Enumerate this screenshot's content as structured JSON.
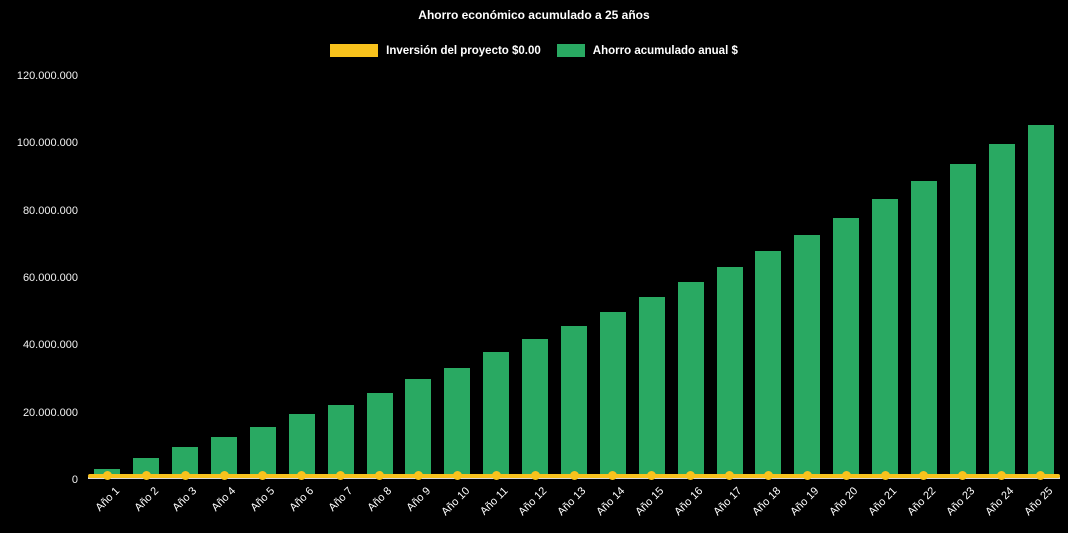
{
  "chart_data": {
    "type": "bar",
    "title": "Ahorro económico acumulado a 25 años",
    "background": "#000000",
    "grid": false,
    "legend_position": "top",
    "categories": [
      "Año 1",
      "Año 2",
      "Año 3",
      "Año 4",
      "Año 5",
      "Año 6",
      "Año 7",
      "Año 8",
      "Año 9",
      "Año 10",
      "Año 11",
      "Año 12",
      "Año 13",
      "Año 14",
      "Año 15",
      "Año 16",
      "Año 17",
      "Año 18",
      "Año 19",
      "Año 20",
      "Año 21",
      "Año 22",
      "Año 23",
      "Año 24",
      "Año 25"
    ],
    "series": [
      {
        "name": "Inversión del proyecto $0.00",
        "type": "line",
        "color": "#F8C21C",
        "values": [
          0,
          0,
          0,
          0,
          0,
          0,
          0,
          0,
          0,
          0,
          0,
          0,
          0,
          0,
          0,
          0,
          0,
          0,
          0,
          0,
          0,
          0,
          0,
          0,
          0
        ]
      },
      {
        "name": "Ahorro acumulado anual $",
        "type": "bar",
        "color": "#29A962",
        "values": [
          2500000,
          5500000,
          9000000,
          12000000,
          15000000,
          18700000,
          21500000,
          25000000,
          29000000,
          32500000,
          37000000,
          41000000,
          45000000,
          49000000,
          53500000,
          58000000,
          62500000,
          67000000,
          72000000,
          77000000,
          82500000,
          88000000,
          93000000,
          99000000,
          104500000
        ]
      }
    ],
    "xlabel": "",
    "ylabel": "",
    "ylim": [
      0,
      120000000
    ],
    "yticks": [
      0,
      20000000,
      40000000,
      60000000,
      80000000,
      100000000,
      120000000
    ],
    "ytick_labels": [
      "0",
      "20.000.000",
      "40.000.000",
      "60.000.000",
      "80.000.000",
      "100.000.000",
      "120.000.000"
    ]
  }
}
